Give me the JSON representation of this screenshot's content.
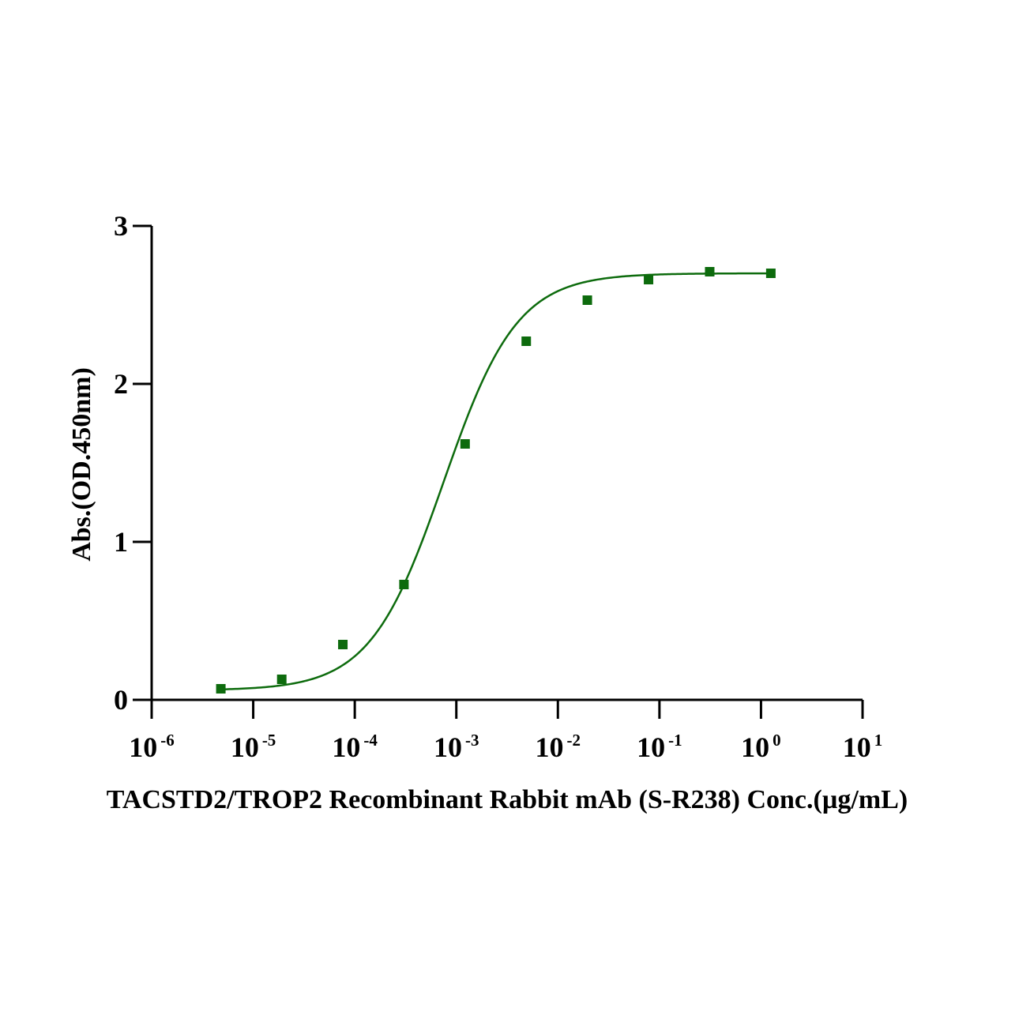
{
  "chart_data": {
    "type": "scatter",
    "title": "",
    "xlabel": "TACSTD2/TROP2 Recombinant Rabbit mAb (S-R238) Conc.(µg/mL)",
    "ylabel": "Abs.(OD.450nm)",
    "x_scale": "log",
    "xlim": [
      1e-06,
      10
    ],
    "ylim": [
      0,
      3
    ],
    "x_ticks": [
      {
        "base": "10",
        "exp": "-6"
      },
      {
        "base": "10",
        "exp": "-5"
      },
      {
        "base": "10",
        "exp": "-4"
      },
      {
        "base": "10",
        "exp": "-3"
      },
      {
        "base": "10",
        "exp": "-2"
      },
      {
        "base": "10",
        "exp": "-1"
      },
      {
        "base": "10",
        "exp": "0"
      },
      {
        "base": "10",
        "exp": "1"
      }
    ],
    "y_ticks": [
      "0",
      "1",
      "2",
      "3"
    ],
    "y_tick_values": [
      0,
      1,
      2,
      3
    ],
    "grid": false,
    "marker": "square",
    "color": "#0d6b0d",
    "x": [
      4.8e-06,
      1.91e-05,
      7.63e-05,
      0.000305,
      0.00122,
      0.00488,
      0.0195,
      0.0781,
      0.3125,
      1.25
    ],
    "y": [
      0.07,
      0.13,
      0.35,
      0.73,
      1.62,
      2.27,
      2.53,
      2.66,
      2.71,
      2.7
    ],
    "fit": {
      "model": "4PL",
      "bottom": 0.06,
      "top": 2.7,
      "ec50": 0.00075,
      "hill": 1.2
    }
  }
}
